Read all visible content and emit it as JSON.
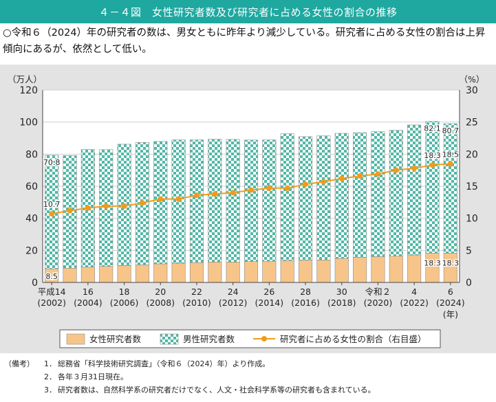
{
  "header": {
    "title": "４－４図　女性研究者数及び研究者に占める女性の割合の推移"
  },
  "summary": "○令和６（2024）年の研究者の数は、男女ともに昨年より減少している。研究者に占める女性の割合は上昇傾向にあるが、依然として低い。",
  "chart_data": {
    "type": "bar",
    "stacked": true,
    "left_axis_label": "（万人）",
    "right_axis_label": "（%）",
    "ylim_left": [
      0,
      120
    ],
    "ylim_right": [
      0,
      30
    ],
    "left_ticks": [
      0,
      20,
      40,
      60,
      80,
      100,
      120
    ],
    "right_ticks": [
      0,
      5,
      10,
      15,
      20,
      25,
      30
    ],
    "x_unit_label": "(年)",
    "x_tick_labels": [
      {
        "index": 0,
        "line1": "平成14",
        "line2": "(2002)"
      },
      {
        "index": 2,
        "line1": "16",
        "line2": "(2004)"
      },
      {
        "index": 4,
        "line1": "18",
        "line2": "(2006)"
      },
      {
        "index": 6,
        "line1": "20",
        "line2": "(2008)"
      },
      {
        "index": 8,
        "line1": "22",
        "line2": "(2010)"
      },
      {
        "index": 10,
        "line1": "24",
        "line2": "(2012)"
      },
      {
        "index": 12,
        "line1": "26",
        "line2": "(2014)"
      },
      {
        "index": 14,
        "line1": "28",
        "line2": "(2016)"
      },
      {
        "index": 16,
        "line1": "30",
        "line2": "(2018)"
      },
      {
        "index": 18,
        "line1": "令和２",
        "line2": "(2020)"
      },
      {
        "index": 20,
        "line1": "4",
        "line2": "(2022)"
      },
      {
        "index": 22,
        "line1": "6",
        "line2": "(2024)"
      }
    ],
    "years": [
      2002,
      2003,
      2004,
      2005,
      2006,
      2007,
      2008,
      2009,
      2010,
      2011,
      2012,
      2013,
      2014,
      2015,
      2016,
      2017,
      2018,
      2019,
      2020,
      2021,
      2022,
      2023,
      2024
    ],
    "series": [
      {
        "name": "女性研究者数",
        "axis": "left",
        "values": [
          8.5,
          8.9,
          9.6,
          10.0,
          10.5,
          11.0,
          11.6,
          12.0,
          12.4,
          12.7,
          12.7,
          13.0,
          13.2,
          13.6,
          13.8,
          14.0,
          15.0,
          15.6,
          16.1,
          16.4,
          17.1,
          18.3,
          18.3
        ]
      },
      {
        "name": "男性研究者数",
        "axis": "left",
        "values": [
          70.8,
          70.2,
          73.3,
          72.8,
          75.7,
          76.3,
          76.3,
          76.9,
          76.5,
          76.6,
          76.5,
          75.8,
          75.7,
          79.1,
          77.1,
          77.4,
          78.0,
          77.8,
          77.9,
          78.5,
          81.1,
          82.1,
          80.7
        ]
      },
      {
        "name": "研究者に占める女性の割合（右目盛）",
        "axis": "right",
        "type": "line",
        "values": [
          10.7,
          11.2,
          11.6,
          11.9,
          11.9,
          12.4,
          13.0,
          13.0,
          13.6,
          13.8,
          14.0,
          14.4,
          14.7,
          14.7,
          15.3,
          15.7,
          16.2,
          16.6,
          16.9,
          17.5,
          17.8,
          18.3,
          18.5
        ]
      }
    ],
    "bar_value_labels": [
      {
        "series": "男性研究者数",
        "index": 0,
        "text": "70.8"
      },
      {
        "series": "女性研究者数",
        "index": 0,
        "text": "8.5"
      },
      {
        "series": "男性研究者数",
        "index": 21,
        "text": "82.1"
      },
      {
        "series": "男性研究者数",
        "index": 22,
        "text": "80.7"
      },
      {
        "series": "女性研究者数",
        "index": 21,
        "text": "18.3"
      },
      {
        "series": "女性研究者数",
        "index": 22,
        "text": "18.3"
      }
    ],
    "line_value_labels": [
      {
        "index": 0,
        "text": "10.7"
      },
      {
        "index": 21,
        "text": "18.3"
      },
      {
        "index": 22,
        "text": "18.5"
      }
    ],
    "legend": {
      "position": "bottom",
      "items": [
        "女性研究者数",
        "男性研究者数",
        "研究者に占める女性の割合（右目盛）"
      ]
    },
    "colors": {
      "female_bar": "#f7c58a",
      "male_check": "#52b8a7",
      "line": "#f39a1a",
      "panel": "#e3e3e3"
    }
  },
  "notes": {
    "head": "（備考）",
    "items": [
      {
        "num": "1．",
        "text": "総務省「科学技術研究調査」（令和６（2024）年）より作成。"
      },
      {
        "num": "2．",
        "text": "各年３月31日現在。"
      },
      {
        "num": "3．",
        "text": "研究者数は、自然科学系の研究者だけでなく、人文・社会科学系等の研究者も含まれている。"
      }
    ]
  }
}
